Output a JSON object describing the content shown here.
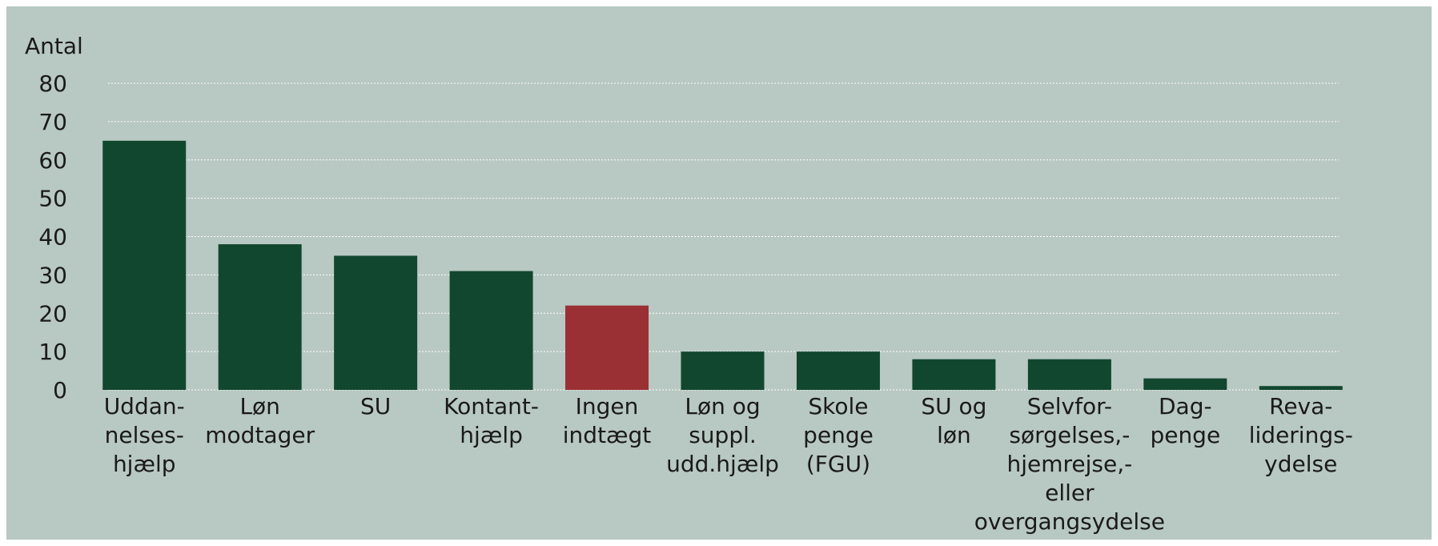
{
  "chart_data": {
    "type": "bar",
    "y_axis_label": "Antal",
    "categories": [
      "Uddan-\nnelses-\nhjælp",
      "Løn\nmodtager",
      "SU",
      "Kontant-\nhjælp",
      "Ingen\nindtægt",
      "Løn og\nsuppl.\nudd.hjælp",
      "Skole\npenge\n(FGU)",
      "SU og\nløn",
      "Selvfor-\nsørgelses,-\nhjemrejse,-\neller\novergangsydelse",
      "Dag-\npenge",
      "Reva-\nliderings-\nydelse"
    ],
    "values": [
      65,
      38,
      35,
      31,
      22,
      10,
      10,
      8,
      8,
      3,
      1
    ],
    "colors": [
      "#12472f",
      "#12472f",
      "#12472f",
      "#12472f",
      "#9a3033",
      "#12472f",
      "#12472f",
      "#12472f",
      "#12472f",
      "#12472f",
      "#12472f"
    ],
    "ylim": [
      0,
      80
    ],
    "yticks": [
      0,
      10,
      20,
      30,
      40,
      50,
      60,
      70,
      80
    ],
    "grid": true
  }
}
